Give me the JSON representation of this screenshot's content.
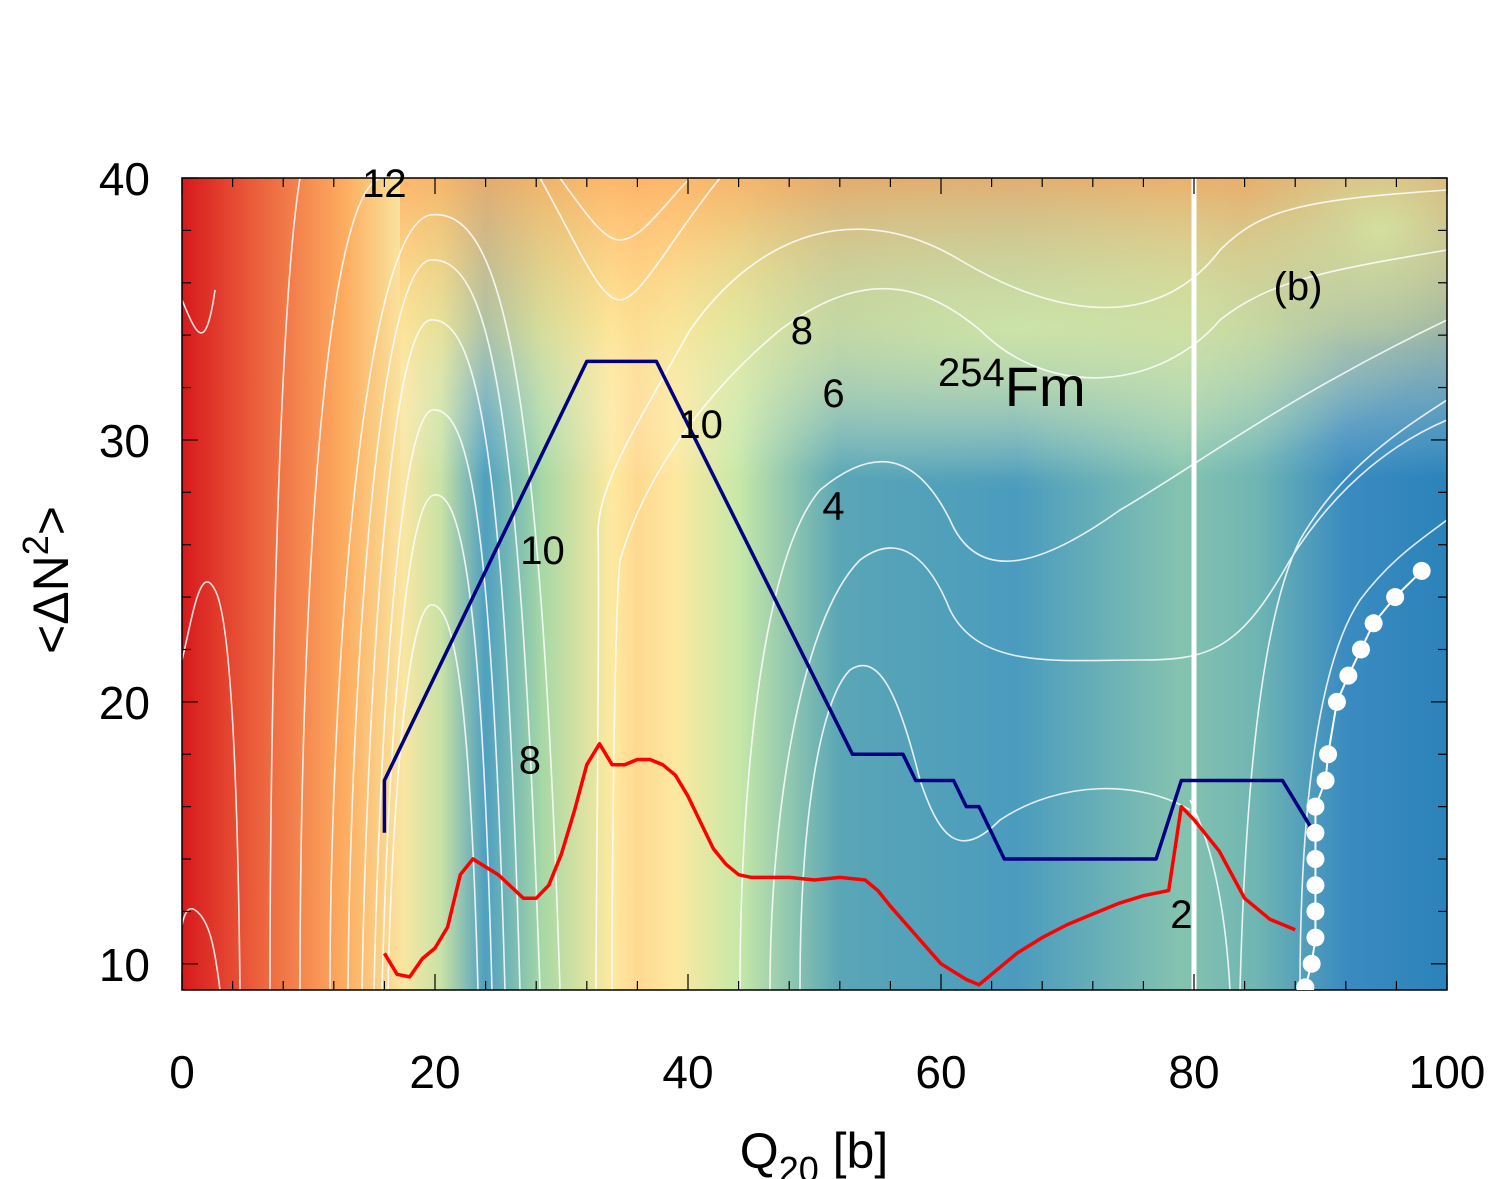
{
  "chart_data": {
    "type": "contour",
    "title": "",
    "xlabel": "Q",
    "xlabel_sub": "20",
    "xlabel_unit": " [b]",
    "ylabel": "<ΔN",
    "ylabel_sup": "2",
    "ylabel_end": ">",
    "xlim": [
      0,
      100
    ],
    "ylim": [
      9,
      40
    ],
    "xticks": [
      0,
      20,
      40,
      60,
      80,
      100
    ],
    "yticks": [
      10,
      20,
      30,
      40
    ],
    "xtick_labels": [
      "0",
      "20",
      "40",
      "60",
      "80",
      "100"
    ],
    "ytick_labels": [
      "10",
      "20",
      "30",
      "40"
    ],
    "panel_label": "(b)",
    "nucleus": {
      "mass": "254",
      "symbol": "Fm"
    },
    "contour_labels": [
      {
        "text": "12",
        "x": 16.0,
        "y": 39.8
      },
      {
        "text": "8",
        "x": 49.0,
        "y": 34.2
      },
      {
        "text": "6",
        "x": 51.5,
        "y": 31.8
      },
      {
        "text": "10",
        "x": 41.0,
        "y": 30.6
      },
      {
        "text": "4",
        "x": 51.5,
        "y": 27.5
      },
      {
        "text": "10",
        "x": 28.5,
        "y": 25.8
      },
      {
        "text": "8",
        "x": 27.5,
        "y": 17.8
      },
      {
        "text": "2",
        "x": 79.0,
        "y": 11.9
      }
    ],
    "vertical_line": {
      "x": 80.0
    },
    "series": [
      {
        "name": "blue path",
        "color": "#000080",
        "x": [
          16,
          16,
          32,
          37.5,
          53,
          57,
          58,
          61,
          62,
          63,
          65,
          77,
          79,
          87,
          89.5
        ],
        "y": [
          15,
          17,
          33,
          33,
          18,
          18,
          17,
          17,
          16,
          16,
          14,
          14,
          17,
          17,
          15
        ]
      },
      {
        "name": "red curve",
        "color": "#ff0000",
        "x": [
          16,
          17,
          18,
          19,
          20,
          21,
          22,
          23,
          25,
          27,
          28,
          29,
          30,
          31,
          32,
          33,
          34,
          35,
          36,
          37,
          38,
          39,
          40,
          41,
          42,
          43,
          44,
          45,
          46,
          47,
          48,
          50,
          52,
          54,
          55,
          56,
          58,
          60,
          62,
          63,
          64,
          66,
          68,
          70,
          72,
          74,
          76,
          78,
          79,
          80,
          82,
          84,
          85,
          86,
          87,
          88
        ],
        "y": [
          10.4,
          9.6,
          9.5,
          10.2,
          10.6,
          11.4,
          13.4,
          14.0,
          13.4,
          12.5,
          12.5,
          13.0,
          14.2,
          15.8,
          17.6,
          18.4,
          17.6,
          17.6,
          17.8,
          17.8,
          17.6,
          17.2,
          16.4,
          15.4,
          14.4,
          13.8,
          13.4,
          13.3,
          13.3,
          13.3,
          13.3,
          13.2,
          13.3,
          13.2,
          12.8,
          12.2,
          11.1,
          10.0,
          9.4,
          9.2,
          9.6,
          10.4,
          11.0,
          11.5,
          11.9,
          12.3,
          12.6,
          12.8,
          16.0,
          15.5,
          14.3,
          12.5,
          12.1,
          11.7,
          11.5,
          11.3
        ]
      },
      {
        "name": "white dots",
        "color": "#ffffff",
        "x": [
          88.8,
          89.3,
          89.6,
          89.6,
          89.6,
          89.6,
          89.6,
          89.6,
          90.4,
          90.6,
          91.3,
          92.2,
          93.2,
          94.2,
          95.9,
          98.0
        ],
        "y": [
          9.1,
          10.0,
          11.0,
          12.0,
          13.0,
          14.0,
          15.0,
          16.0,
          17.0,
          18.0,
          20.0,
          21.0,
          22.0,
          23.0,
          24.0,
          25.0
        ]
      }
    ]
  }
}
